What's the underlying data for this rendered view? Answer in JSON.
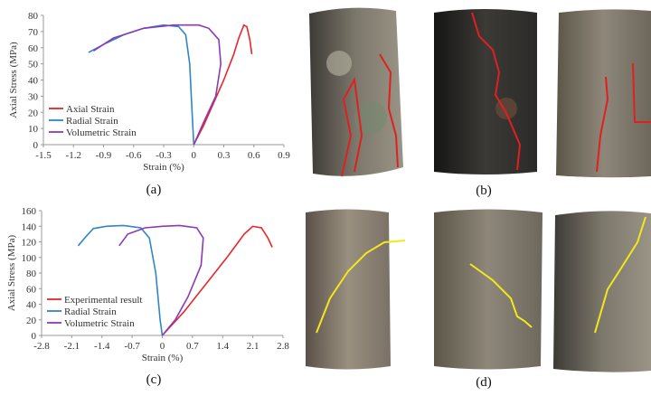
{
  "chart_data": [
    {
      "type": "line",
      "xlabel": "Strain (%)",
      "ylabel": "Axial Stress (MPa)",
      "xlim": [
        -1.5,
        0.9
      ],
      "xticks": [
        -1.5,
        -1.2,
        -0.9,
        -0.6,
        -0.3,
        0,
        0.3,
        0.6,
        0.9
      ],
      "ylim": [
        0,
        80
      ],
      "yticks": [
        0,
        10,
        20,
        30,
        40,
        50,
        60,
        70,
        80
      ],
      "grid": false,
      "legend": "lower left",
      "series": [
        {
          "name": "Axial Strain",
          "color": "#e8262a",
          "x": [
            0,
            0.1,
            0.2,
            0.3,
            0.4,
            0.45,
            0.5,
            0.53,
            0.56,
            0.58
          ],
          "values": [
            0,
            12,
            26,
            40,
            56,
            66,
            74,
            73,
            65,
            56
          ]
        },
        {
          "name": "Radial Strain",
          "color": "#2e86c8",
          "x": [
            -1.05,
            -0.9,
            -0.7,
            -0.5,
            -0.3,
            -0.15,
            -0.08,
            -0.04,
            -0.02,
            0
          ],
          "values": [
            57,
            62,
            68,
            72,
            74,
            73,
            68,
            50,
            25,
            0
          ]
        },
        {
          "name": "Volumetric Strain",
          "color": "#8a3ab9",
          "x": [
            -1.0,
            -0.8,
            -0.5,
            -0.2,
            0.05,
            0.15,
            0.25,
            0.27,
            0.22,
            0.1,
            0
          ],
          "values": [
            58,
            66,
            72,
            74,
            74,
            72,
            65,
            50,
            30,
            14,
            0
          ]
        }
      ]
    },
    {
      "type": "line",
      "xlabel": "Strain (%)",
      "ylabel": "Axial Stress (MPa)",
      "xlim": [
        -2.8,
        2.8
      ],
      "xticks": [
        -2.8,
        -2.1,
        -1.4,
        -0.7,
        0,
        0.7,
        1.4,
        2.1,
        2.8
      ],
      "ylim": [
        0,
        160
      ],
      "yticks": [
        0,
        20,
        40,
        60,
        80,
        100,
        120,
        140,
        160
      ],
      "grid": false,
      "legend": "lower left",
      "series": [
        {
          "name": "Experimental result",
          "color": "#e8262a",
          "x": [
            0,
            0.5,
            1.0,
            1.5,
            1.9,
            2.1,
            2.3,
            2.45,
            2.55
          ],
          "values": [
            0,
            30,
            65,
            100,
            130,
            140,
            138,
            125,
            113
          ]
        },
        {
          "name": "Radial Strain",
          "color": "#2e86c8",
          "x": [
            -1.95,
            -1.8,
            -1.6,
            -1.3,
            -0.9,
            -0.5,
            -0.3,
            -0.15,
            -0.05,
            0
          ],
          "values": [
            115,
            125,
            137,
            140,
            141,
            138,
            125,
            80,
            20,
            0
          ]
        },
        {
          "name": "Volumetric Strain",
          "color": "#8a3ab9",
          "x": [
            -1.0,
            -0.8,
            -0.4,
            0,
            0.4,
            0.8,
            0.95,
            0.9,
            0.6,
            0.3,
            0
          ],
          "values": [
            115,
            130,
            138,
            140,
            141,
            138,
            125,
            90,
            50,
            20,
            0
          ]
        }
      ]
    }
  ],
  "panel_labels": [
    "(a)",
    "(b)",
    "(c)",
    "(d)"
  ]
}
